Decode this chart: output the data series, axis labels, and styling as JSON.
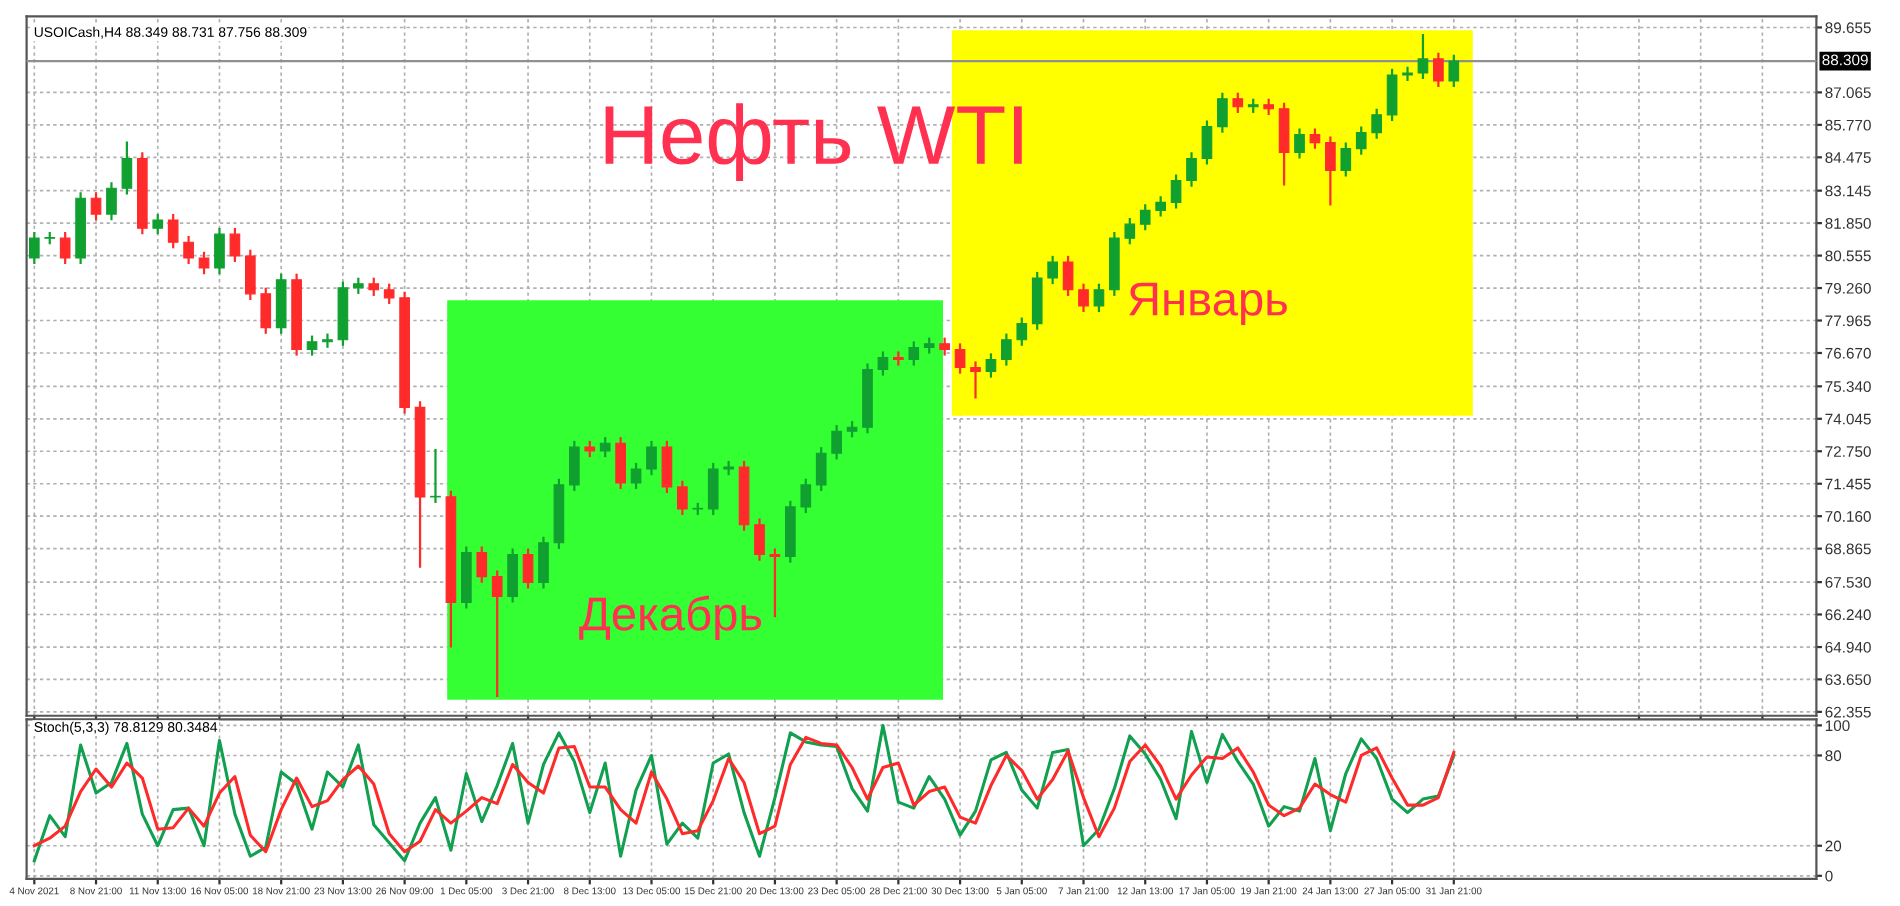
{
  "chart_data": [
    {
      "type": "candlestick",
      "title": "USOICash,H4 88.349 88.731 87.756 88.309",
      "annotations": [
        "Нефть WTI",
        "Декабрь",
        "Январь"
      ],
      "categories": [
        null,
        null,
        null,
        null,
        null,
        null,
        null,
        null,
        null,
        null,
        null,
        null,
        null,
        null,
        null,
        null,
        null,
        null,
        null,
        null,
        null,
        null,
        null,
        null,
        null,
        null,
        null,
        null,
        null,
        null,
        null,
        null,
        null,
        null,
        null,
        null,
        null,
        null,
        null,
        null,
        null,
        null,
        null,
        null,
        null,
        null,
        null,
        null,
        null,
        null,
        null,
        null,
        null,
        null,
        null,
        null,
        null,
        null,
        null,
        null,
        null,
        null,
        null,
        null,
        null,
        null,
        null,
        null,
        null,
        null,
        null,
        null,
        null,
        null,
        null,
        null,
        null,
        null,
        null,
        null,
        null,
        null,
        null,
        null,
        null,
        null,
        null,
        null,
        null,
        null,
        null,
        null,
        null,
        null,
        null,
        null,
        null,
        null,
        null,
        null,
        null,
        null,
        null,
        null,
        null,
        null,
        null,
        null,
        null,
        null,
        null,
        null,
        null,
        null,
        null,
        null
      ],
      "colors": [
        "#10a030",
        "#10a030",
        "#ff2a2a",
        "#10a030",
        "#ff2a2a",
        "#10a030",
        "#10a030",
        "#ff2a2a",
        "#10a030",
        "#ff2a2a",
        "#ff2a2a",
        "#ff2a2a",
        "#10a030",
        "#ff2a2a",
        "#ff2a2a",
        "#ff2a2a",
        "#10a030",
        "#ff2a2a",
        "#10a030",
        "#10a030",
        "#10a030",
        "#10a030",
        "#ff2a2a",
        "#ff2a2a",
        "#ff2a2a",
        "#ff2a2a",
        "#10a030",
        "#ff2a2a",
        "#10a030",
        "#ff2a2a",
        "#ff2a2a",
        "#10a030",
        "#ff2a2a",
        "#10a030",
        "#10a030",
        "#10a030",
        "#ff2a2a",
        "#10a030",
        "#ff2a2a",
        "#10a030",
        "#10a030",
        "#ff2a2a",
        "#ff2a2a",
        "#10a030",
        "#10a030",
        "#10a030",
        "#ff2a2a",
        "#ff2a2a",
        "#ff2a2a",
        "#10a030",
        "#10a030",
        "#10a030",
        "#10a030",
        "#10a030",
        "#10a030",
        "#10a030",
        "#ff2a2a",
        "#10a030",
        "#10a030",
        "#ff2a2a",
        "#ff2a2a",
        "#ff2a2a",
        "#10a030",
        "#10a030",
        "#10a030",
        "#10a030",
        "#10a030",
        "#ff2a2a",
        "#ff2a2a",
        "#10a030",
        "#10a030",
        "#10a030",
        "#10a030",
        "#10a030",
        "#10a030",
        "#10a030",
        "#10a030",
        "#10a030",
        "#ff2a2a",
        "#10a030",
        "#ff2a2a",
        "#ff2a2a",
        "#10a030",
        "#ff2a2a",
        "#ff2a2a",
        "#10a030",
        "#10a030",
        "#10a030",
        "#10a030",
        "#10a030",
        "#10a030",
        "#ff2a2a",
        "#10a030",
        null,
        null,
        null,
        null,
        null,
        null,
        null,
        null,
        null,
        null,
        null,
        null,
        null,
        null,
        null,
        null,
        null,
        null,
        null,
        null,
        null,
        null,
        null
      ],
      "ohlc": [
        [
          80.46,
          81.45,
          80.26,
          81.25
        ],
        [
          81.25,
          81.45,
          81.05,
          81.25
        ],
        [
          81.25,
          81.45,
          80.26,
          80.46
        ],
        [
          80.46,
          83.04,
          80.26,
          82.84
        ],
        [
          82.84,
          83.04,
          82.01,
          82.21
        ],
        [
          82.21,
          83.44,
          82.01,
          83.24
        ],
        [
          83.24,
          85.06,
          83.04,
          84.43
        ],
        [
          84.43,
          84.63,
          81.45,
          81.65
        ],
        [
          81.65,
          82.17,
          81.45,
          81.97
        ],
        [
          81.97,
          82.17,
          80.89,
          81.09
        ],
        [
          81.09,
          81.29,
          80.26,
          80.46
        ],
        [
          80.46,
          80.66,
          79.86,
          80.06
        ],
        [
          80.06,
          81.61,
          79.86,
          81.41
        ],
        [
          81.41,
          81.61,
          80.34,
          80.54
        ],
        [
          80.54,
          80.74,
          78.83,
          79.03
        ],
        [
          79.03,
          79.23,
          77.48,
          77.68
        ],
        [
          77.68,
          79.79,
          77.48,
          79.59
        ],
        [
          79.59,
          79.79,
          76.61,
          76.81
        ],
        [
          76.81,
          77.32,
          76.61,
          77.12
        ],
        [
          77.12,
          77.4,
          76.92,
          77.2
        ],
        [
          77.2,
          79.47,
          77.0,
          79.27
        ],
        [
          79.27,
          79.63,
          79.07,
          79.43
        ],
        [
          79.43,
          79.63,
          78.99,
          79.19
        ],
        [
          79.19,
          79.39,
          78.67,
          78.87
        ],
        [
          78.87,
          79.07,
          74.3,
          74.5
        ],
        [
          74.5,
          74.7,
          68.15,
          70.93
        ],
        [
          70.93,
          72.8,
          70.73,
          70.93
        ],
        [
          70.93,
          71.13,
          64.97,
          66.72
        ],
        [
          66.72,
          68.91,
          66.52,
          68.71
        ],
        [
          68.71,
          68.91,
          67.55,
          67.75
        ],
        [
          67.75,
          67.95,
          62.99,
          66.96
        ],
        [
          66.96,
          68.83,
          66.76,
          68.63
        ],
        [
          68.63,
          68.83,
          67.32,
          67.52
        ],
        [
          67.52,
          69.3,
          67.32,
          69.1
        ],
        [
          69.1,
          71.61,
          68.9,
          71.41
        ],
        [
          71.41,
          73.12,
          71.21,
          72.92
        ],
        [
          72.92,
          73.12,
          72.56,
          72.76
        ],
        [
          72.76,
          73.27,
          72.56,
          73.07
        ],
        [
          73.07,
          73.27,
          71.29,
          71.49
        ],
        [
          71.49,
          72.24,
          71.29,
          72.04
        ],
        [
          72.04,
          73.12,
          71.84,
          72.92
        ],
        [
          72.92,
          73.12,
          71.13,
          71.33
        ],
        [
          71.33,
          71.53,
          70.25,
          70.45
        ],
        [
          70.45,
          70.65,
          70.25,
          70.45
        ],
        [
          70.45,
          72.24,
          70.25,
          72.04
        ],
        [
          72.04,
          72.32,
          71.84,
          72.12
        ],
        [
          72.12,
          72.32,
          69.62,
          69.82
        ],
        [
          69.82,
          70.02,
          68.43,
          68.63
        ],
        [
          68.63,
          68.83,
          66.17,
          68.55
        ],
        [
          68.55,
          70.73,
          68.35,
          70.53
        ],
        [
          70.53,
          71.61,
          70.33,
          71.41
        ],
        [
          71.41,
          72.87,
          71.21,
          72.67
        ],
        [
          72.67,
          73.75,
          72.47,
          73.55
        ],
        [
          73.55,
          73.91,
          73.35,
          73.71
        ],
        [
          73.71,
          76.21,
          73.51,
          76.01
        ],
        [
          76.01,
          76.69,
          75.81,
          76.49
        ],
        [
          76.49,
          76.69,
          76.21,
          76.41
        ],
        [
          76.41,
          77.09,
          76.21,
          76.89
        ],
        [
          76.89,
          77.24,
          76.69,
          77.04
        ],
        [
          77.04,
          77.24,
          76.61,
          76.81
        ],
        [
          76.81,
          77.01,
          75.89,
          76.09
        ],
        [
          76.09,
          76.29,
          74.9,
          75.93
        ],
        [
          75.93,
          76.61,
          75.73,
          76.41
        ],
        [
          76.41,
          77.4,
          76.21,
          77.2
        ],
        [
          77.2,
          78.04,
          77.0,
          77.84
        ],
        [
          77.84,
          79.86,
          77.64,
          79.66
        ],
        [
          79.66,
          80.5,
          79.46,
          80.3
        ],
        [
          80.3,
          80.5,
          78.99,
          79.19
        ],
        [
          79.19,
          79.39,
          78.35,
          78.55
        ],
        [
          78.55,
          79.39,
          78.35,
          79.19
        ],
        [
          79.19,
          81.45,
          78.99,
          81.25
        ],
        [
          81.25,
          82.01,
          81.05,
          81.81
        ],
        [
          81.81,
          82.56,
          81.61,
          82.36
        ],
        [
          82.36,
          82.88,
          82.16,
          82.68
        ],
        [
          82.68,
          83.75,
          82.48,
          83.55
        ],
        [
          83.55,
          84.63,
          83.35,
          84.43
        ],
        [
          84.43,
          85.9,
          84.23,
          85.7
        ],
        [
          85.7,
          87.01,
          85.5,
          86.81
        ],
        [
          86.81,
          87.01,
          86.29,
          86.49
        ],
        [
          86.49,
          86.77,
          86.29,
          86.57
        ],
        [
          86.57,
          86.77,
          86.21,
          86.41
        ],
        [
          86.41,
          86.61,
          83.4,
          84.67
        ],
        [
          84.67,
          85.58,
          84.47,
          85.38
        ],
        [
          85.38,
          85.58,
          84.86,
          85.06
        ],
        [
          85.06,
          85.26,
          82.6,
          83.95
        ],
        [
          83.95,
          85.02,
          83.75,
          84.82
        ],
        [
          84.82,
          85.66,
          84.62,
          85.46
        ],
        [
          85.46,
          86.37,
          85.26,
          86.17
        ],
        [
          86.17,
          87.96,
          85.97,
          87.76
        ],
        [
          87.76,
          88.04,
          87.56,
          87.84
        ],
        [
          87.84,
          89.35,
          87.64,
          88.4
        ],
        [
          88.4,
          88.6,
          87.32,
          87.52
        ],
        [
          87.52,
          88.52,
          87.32,
          88.32
        ],
        null,
        null,
        null,
        null,
        null,
        null,
        null,
        null,
        null,
        null,
        null,
        null,
        null,
        null,
        null,
        null,
        null,
        null,
        null,
        null,
        null,
        null,
        null
      ],
      "ylim": [
        62.2,
        90.1
      ],
      "yticks": [
        {
          "value": 62.355,
          "label": "62.355"
        },
        {
          "value": 63.65,
          "label": "63.650"
        },
        {
          "value": 64.94,
          "label": "64.940"
        },
        {
          "value": 66.24,
          "label": "66.240"
        },
        {
          "value": 67.53,
          "label": "67.530"
        },
        {
          "value": 68.865,
          "label": "68.865"
        },
        {
          "value": 70.16,
          "label": "70.160"
        },
        {
          "value": 71.455,
          "label": "71.455"
        },
        {
          "value": 72.75,
          "label": "72.750"
        },
        {
          "value": 74.045,
          "label": "74.045"
        },
        {
          "value": 75.34,
          "label": "75.340"
        },
        {
          "value": 76.67,
          "label": "76.670"
        },
        {
          "value": 77.965,
          "label": "77.965"
        },
        {
          "value": 79.26,
          "label": "79.260"
        },
        {
          "value": 80.555,
          "label": "80.555"
        },
        {
          "value": 81.85,
          "label": "81.850"
        },
        {
          "value": 83.145,
          "label": "83.145"
        },
        {
          "value": 84.475,
          "label": "84.475"
        },
        {
          "value": 85.77,
          "label": "85.770"
        },
        {
          "value": 87.065,
          "label": "87.065"
        },
        {
          "value": 89.655,
          "label": "89.655"
        }
      ],
      "ref_lines": [
        {
          "axis": "y",
          "value": 88.309,
          "label": "88.309",
          "color": "#909090"
        }
      ],
      "grid": true,
      "tick_labels": "y"
    },
    {
      "type": "line",
      "title": "Stoch(5,3,3) 78.8129 80.3484",
      "categories": [
        "4 Nov 2021",
        null,
        null,
        null,
        "8 Nov 21:00",
        null,
        null,
        null,
        "11 Nov 13:00",
        null,
        null,
        null,
        "16 Nov 05:00",
        null,
        null,
        null,
        "18 Nov 21:00",
        null,
        null,
        null,
        "23 Nov 13:00",
        null,
        null,
        null,
        "26 Nov 09:00",
        null,
        null,
        null,
        "1 Dec 05:00",
        null,
        null,
        null,
        "3 Dec 21:00",
        null,
        null,
        null,
        "8 Dec 13:00",
        null,
        null,
        null,
        "13 Dec 05:00",
        null,
        null,
        null,
        "15 Dec 21:00",
        null,
        null,
        null,
        "20 Dec 13:00",
        null,
        null,
        null,
        "23 Dec 05:00",
        null,
        null,
        null,
        "28 Dec 21:00",
        null,
        null,
        null,
        "30 Dec 13:00",
        null,
        null,
        null,
        "5 Jan 05:00",
        null,
        null,
        null,
        "7 Jan 21:00",
        null,
        null,
        null,
        "12 Jan 13:00",
        null,
        null,
        null,
        "17 Jan 05:00",
        null,
        null,
        null,
        "19 Jan 21:00",
        null,
        null,
        null,
        "24 Jan 13:00",
        null,
        null,
        null,
        "27 Jan 05:00",
        null,
        null,
        null,
        "31 Jan 21:00",
        null,
        null,
        null,
        null,
        null,
        null,
        null,
        null,
        null,
        null,
        null,
        null,
        null,
        null,
        null,
        null,
        null,
        null,
        null,
        null,
        null,
        null,
        null
      ],
      "series": [
        {
          "color": "#10a050",
          "values": [
            10,
            40,
            26,
            87,
            55,
            62,
            88,
            41,
            20,
            44,
            45,
            20,
            90,
            41,
            13,
            19,
            69,
            61,
            31,
            69,
            59,
            87,
            34,
            22,
            10,
            35,
            52,
            17,
            68,
            36,
            60,
            88,
            35,
            74,
            95,
            76,
            42,
            75,
            13,
            57,
            80,
            21,
            35,
            25,
            75,
            81,
            42,
            13,
            52,
            95,
            89,
            87,
            86,
            58,
            43,
            100,
            49,
            45,
            66,
            51,
            27,
            43,
            77,
            82,
            57,
            45,
            82,
            84,
            20,
            31,
            58,
            93,
            81,
            64,
            38,
            96,
            62,
            94,
            76,
            61,
            33,
            46,
            43,
            78,
            30,
            68,
            91,
            78,
            51,
            42,
            51,
            53,
            80,
            null,
            null,
            null,
            null,
            null,
            null,
            null,
            null,
            null,
            null,
            null,
            null,
            null,
            null,
            null,
            null,
            null,
            null,
            null,
            null,
            null,
            null,
            null
          ]
        },
        {
          "color": "#ff2a2a",
          "values": [
            20,
            25,
            33,
            56,
            71,
            59,
            75,
            65,
            31,
            32,
            45,
            33,
            55,
            66,
            27,
            16,
            44,
            65,
            46,
            50,
            64,
            73,
            61,
            28,
            16,
            23,
            44,
            35,
            43,
            52,
            48,
            74,
            62,
            55,
            85,
            86,
            59,
            59,
            44,
            35,
            69,
            51,
            28,
            30,
            50,
            78,
            62,
            28,
            33,
            74,
            92,
            88,
            87,
            72,
            51,
            72,
            75,
            47,
            56,
            59,
            39,
            35,
            60,
            80,
            70,
            51,
            64,
            83,
            52,
            26,
            45,
            76,
            87,
            73,
            51,
            67,
            79,
            78,
            85,
            69,
            47,
            40,
            45,
            61,
            54,
            49,
            80,
            85,
            65,
            47,
            47,
            52,
            82,
            null,
            null,
            null,
            null,
            null,
            null,
            null,
            null,
            null,
            null,
            null,
            null,
            null,
            null,
            null,
            null,
            null,
            null,
            null,
            null,
            null,
            null,
            null
          ]
        }
      ],
      "ylim": [
        -2,
        104
      ],
      "yticks": [
        0,
        20,
        80,
        100
      ],
      "grid": true,
      "line_style": "solid",
      "marker": "none"
    }
  ]
}
